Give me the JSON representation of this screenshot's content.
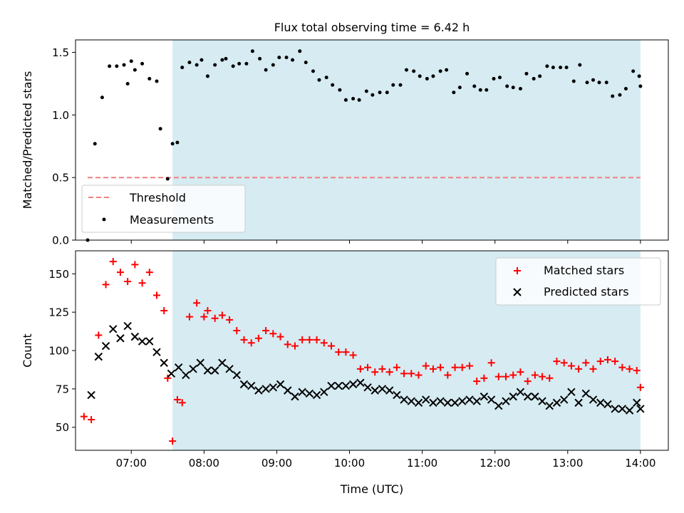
{
  "chart_data": [
    {
      "type": "scatter",
      "title": "Flux total observing time = 6.42 h",
      "ylabel": "Matched/Predicted stars",
      "xlabel": "",
      "xlim": [
        "06:14",
        "14:23"
      ],
      "ylim": [
        0,
        1.6
      ],
      "x_ticks": [
        "07:00",
        "08:00",
        "09:00",
        "10:00",
        "11:00",
        "12:00",
        "13:00",
        "14:00"
      ],
      "y_ticks": [
        "0.0",
        "0.5",
        "1.0",
        "1.5"
      ],
      "y_tick_values": [
        0,
        0.5,
        1.0,
        1.5
      ],
      "shaded_span": {
        "start": "07:34",
        "end": "14:00",
        "color": "#add8e6"
      },
      "legend_position": "lower-left",
      "threshold": {
        "name": "Threshold",
        "value": 0.5,
        "x_start": "06:24",
        "x_end": "14:00",
        "color": "#f08080",
        "style": "dashed"
      },
      "series": [
        {
          "name": "Measurements",
          "marker": "dot",
          "color": "#000000",
          "x": [
            "06:24",
            "06:30",
            "06:36",
            "06:42",
            "06:48",
            "06:54",
            "06:57",
            "07:00",
            "07:03",
            "07:09",
            "07:15",
            "07:21",
            "07:24",
            "07:30",
            "07:34",
            "07:38",
            "07:42",
            "07:48",
            "07:54",
            "07:58",
            "08:03",
            "08:09",
            "08:15",
            "08:18",
            "08:24",
            "08:29",
            "08:35",
            "08:40",
            "08:46",
            "08:51",
            "08:57",
            "09:02",
            "09:08",
            "09:13",
            "09:19",
            "09:24",
            "09:30",
            "09:35",
            "09:41",
            "09:46",
            "09:52",
            "09:57",
            "10:03",
            "10:08",
            "10:14",
            "10:19",
            "10:25",
            "10:31",
            "10:36",
            "10:42",
            "10:47",
            "10:53",
            "10:58",
            "11:04",
            "11:09",
            "11:15",
            "11:20",
            "11:26",
            "11:31",
            "11:37",
            "11:43",
            "11:48",
            "11:53",
            "11:59",
            "12:04",
            "12:10",
            "12:15",
            "12:21",
            "12:26",
            "12:32",
            "12:37",
            "12:43",
            "12:48",
            "12:54",
            "12:59",
            "13:05",
            "13:10",
            "13:16",
            "13:21",
            "13:26",
            "13:32",
            "13:37",
            "13:43",
            "13:48",
            "13:54",
            "13:59",
            "14:00"
          ],
          "y": [
            0.0,
            0.77,
            1.14,
            1.39,
            1.39,
            1.4,
            1.25,
            1.43,
            1.36,
            1.41,
            1.29,
            1.27,
            0.89,
            0.49,
            0.77,
            0.78,
            1.38,
            1.42,
            1.4,
            1.44,
            1.31,
            1.4,
            1.44,
            1.45,
            1.39,
            1.41,
            1.41,
            1.51,
            1.45,
            1.36,
            1.4,
            1.46,
            1.46,
            1.44,
            1.51,
            1.42,
            1.35,
            1.28,
            1.3,
            1.24,
            1.2,
            1.12,
            1.13,
            1.12,
            1.19,
            1.16,
            1.18,
            1.18,
            1.24,
            1.24,
            1.36,
            1.35,
            1.31,
            1.29,
            1.31,
            1.35,
            1.36,
            1.18,
            1.22,
            1.33,
            1.23,
            1.2,
            1.2,
            1.29,
            1.3,
            1.23,
            1.22,
            1.21,
            1.33,
            1.29,
            1.31,
            1.39,
            1.38,
            1.38,
            1.38,
            1.27,
            1.4,
            1.26,
            1.28,
            1.26,
            1.26,
            1.15,
            1.16,
            1.21,
            1.35,
            1.31,
            1.23
          ]
        }
      ]
    },
    {
      "type": "scatter",
      "title": "",
      "ylabel": "Count",
      "xlabel": "Time (UTC)",
      "xlim": [
        "06:14",
        "14:23"
      ],
      "ylim": [
        35,
        165
      ],
      "x_ticks": [
        "07:00",
        "08:00",
        "09:00",
        "10:00",
        "11:00",
        "12:00",
        "13:00",
        "14:00"
      ],
      "y_ticks": [
        "50",
        "75",
        "100",
        "125",
        "150"
      ],
      "y_tick_values": [
        50,
        75,
        100,
        125,
        150
      ],
      "shaded_span": {
        "start": "07:34",
        "end": "14:00",
        "color": "#add8e6"
      },
      "legend_position": "upper-right",
      "series": [
        {
          "name": "Matched stars",
          "marker": "plus",
          "color": "#ff0000",
          "x": [
            "06:21",
            "06:27",
            "06:33",
            "06:39",
            "06:45",
            "06:51",
            "06:57",
            "07:03",
            "07:09",
            "07:15",
            "07:21",
            "07:27",
            "07:30",
            "07:34",
            "07:38",
            "07:42",
            "07:48",
            "07:54",
            "08:00",
            "08:03",
            "08:09",
            "08:15",
            "08:21",
            "08:27",
            "08:33",
            "08:39",
            "08:45",
            "08:51",
            "08:57",
            "09:03",
            "09:09",
            "09:15",
            "09:21",
            "09:27",
            "09:33",
            "09:39",
            "09:45",
            "09:51",
            "09:57",
            "10:03",
            "10:09",
            "10:15",
            "10:21",
            "10:27",
            "10:33",
            "10:39",
            "10:45",
            "10:51",
            "10:57",
            "11:03",
            "11:09",
            "11:15",
            "11:21",
            "11:27",
            "11:33",
            "11:39",
            "11:45",
            "11:51",
            "11:57",
            "12:03",
            "12:09",
            "12:15",
            "12:21",
            "12:27",
            "12:33",
            "12:39",
            "12:45",
            "12:51",
            "12:57",
            "13:03",
            "13:09",
            "13:15",
            "13:21",
            "13:27",
            "13:33",
            "13:39",
            "13:45",
            "13:51",
            "13:57",
            "14:00"
          ],
          "y": [
            57,
            55,
            110,
            143,
            158,
            151,
            145,
            156,
            144,
            151,
            136,
            126,
            82,
            41,
            68,
            66,
            122,
            131,
            122,
            126,
            121,
            123,
            120,
            113,
            107,
            105,
            108,
            113,
            111,
            109,
            104,
            103,
            107,
            107,
            107,
            105,
            103,
            99,
            99,
            97,
            88,
            89,
            86,
            88,
            86,
            89,
            85,
            85,
            84,
            90,
            88,
            89,
            84,
            89,
            89,
            90,
            80,
            82,
            92,
            83,
            83,
            84,
            86,
            80,
            84,
            83,
            82,
            93,
            92,
            90,
            88,
            92,
            88,
            93,
            94,
            93,
            89,
            88,
            87,
            76
          ]
        },
        {
          "name": "Predicted stars",
          "marker": "x",
          "color": "#000000",
          "x": [
            "06:27",
            "06:33",
            "06:39",
            "06:45",
            "06:51",
            "06:57",
            "07:03",
            "07:09",
            "07:15",
            "07:21",
            "07:27",
            "07:33",
            "07:39",
            "07:45",
            "07:51",
            "07:57",
            "08:03",
            "08:09",
            "08:15",
            "08:21",
            "08:27",
            "08:33",
            "08:39",
            "08:45",
            "08:51",
            "08:57",
            "09:03",
            "09:09",
            "09:15",
            "09:21",
            "09:27",
            "09:33",
            "09:39",
            "09:45",
            "09:51",
            "09:57",
            "10:03",
            "10:09",
            "10:15",
            "10:21",
            "10:27",
            "10:33",
            "10:39",
            "10:45",
            "10:51",
            "10:57",
            "11:03",
            "11:09",
            "11:15",
            "11:21",
            "11:27",
            "11:33",
            "11:39",
            "11:45",
            "11:51",
            "11:57",
            "12:03",
            "12:09",
            "12:15",
            "12:21",
            "12:27",
            "12:33",
            "12:39",
            "12:45",
            "12:51",
            "12:57",
            "13:03",
            "13:09",
            "13:15",
            "13:21",
            "13:27",
            "13:33",
            "13:39",
            "13:45",
            "13:51",
            "13:57",
            "14:00"
          ],
          "y": [
            71,
            96,
            103,
            114,
            108,
            116,
            109,
            106,
            106,
            99,
            92,
            85,
            89,
            84,
            88,
            92,
            87,
            87,
            92,
            88,
            84,
            78,
            77,
            74,
            75,
            76,
            78,
            74,
            70,
            73,
            72,
            71,
            73,
            77,
            77,
            77,
            78,
            79,
            76,
            74,
            75,
            74,
            71,
            68,
            67,
            66,
            68,
            66,
            67,
            66,
            66,
            67,
            68,
            67,
            70,
            68,
            64,
            67,
            70,
            73,
            70,
            70,
            67,
            64,
            66,
            68,
            73,
            66,
            72,
            68,
            66,
            65,
            62,
            62,
            61,
            66,
            62
          ]
        }
      ]
    }
  ]
}
